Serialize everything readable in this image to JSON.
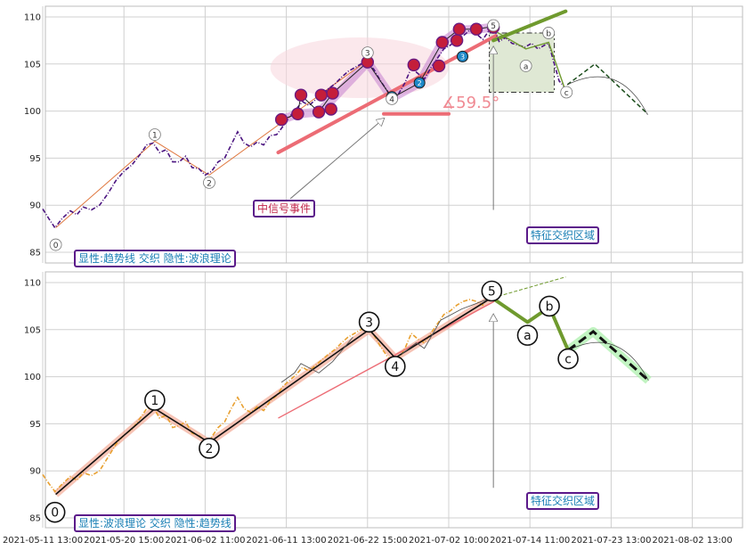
{
  "chart_data": {
    "type": "line",
    "x_ticks": [
      "2021-05-11 13:00",
      "2021-05-20 15:00",
      "2021-06-02 11:00",
      "2021-06-11 13:00",
      "2021-06-22 15:00",
      "2021-07-02 10:00",
      "2021-07-14 11:00",
      "2021-07-23 13:00",
      "2021-08-02 13:00"
    ],
    "y_ticks": [
      85,
      90,
      95,
      100,
      105,
      110
    ],
    "ylim": [
      84,
      111
    ],
    "panels": [
      {
        "id": "top",
        "label": "显性:趋势线 交织 隐性:波浪理论",
        "annotation_event": "中信号事件",
        "annotation_region": "特征交织区域",
        "angle_label": "∡59.5°",
        "wave_points": [
          {
            "label": "0",
            "x": 1.6,
            "y": 85.8
          },
          {
            "label": "1",
            "x": 13.8,
            "y": 97.5
          },
          {
            "label": "2",
            "x": 20.5,
            "y": 92.4
          },
          {
            "label": "3",
            "x": 40.0,
            "y": 106.2
          },
          {
            "label": "4",
            "x": 43.0,
            "y": 101.3
          },
          {
            "label": "5",
            "x": 55.5,
            "y": 109.1
          },
          {
            "label": "a",
            "x": 59.5,
            "y": 104.8
          },
          {
            "label": "b",
            "x": 62.3,
            "y": 108.3
          },
          {
            "label": "c",
            "x": 64.5,
            "y": 102.0
          }
        ],
        "small_marks": [
          {
            "label": "1",
            "x": 43.0,
            "y": 101.5
          },
          {
            "label": "2",
            "x": 46.4,
            "y": 103.0
          },
          {
            "label": "3",
            "x": 51.7,
            "y": 105.8
          }
        ],
        "event_marks": [
          {
            "x": 29.4,
            "y": 99.1
          },
          {
            "x": 31.4,
            "y": 99.7
          },
          {
            "x": 31.8,
            "y": 101.7
          },
          {
            "x": 34.0,
            "y": 99.9
          },
          {
            "x": 34.3,
            "y": 101.7
          },
          {
            "x": 35.5,
            "y": 100.2
          },
          {
            "x": 35.7,
            "y": 101.9
          },
          {
            "x": 40.0,
            "y": 105.2
          },
          {
            "x": 45.7,
            "y": 104.9
          },
          {
            "x": 48.8,
            "y": 104.8
          },
          {
            "x": 49.2,
            "y": 107.3
          },
          {
            "x": 51.0,
            "y": 107.5
          },
          {
            "x": 51.3,
            "y": 108.7
          },
          {
            "x": 53.4,
            "y": 108.7
          },
          {
            "x": 55.5,
            "y": 108.9
          }
        ],
        "price": [
          [
            0.0,
            89.6
          ],
          [
            0.8,
            88.5
          ],
          [
            1.5,
            87.6
          ],
          [
            2.4,
            88.6
          ],
          [
            3.4,
            89.4
          ],
          [
            4.2,
            89.0
          ],
          [
            5.0,
            89.8
          ],
          [
            6.0,
            89.5
          ],
          [
            7.0,
            90.0
          ],
          [
            8.0,
            91.2
          ],
          [
            9.0,
            92.6
          ],
          [
            10.0,
            93.6
          ],
          [
            11.0,
            94.3
          ],
          [
            12.0,
            95.4
          ],
          [
            12.8,
            96.4
          ],
          [
            13.6,
            96.6
          ],
          [
            14.4,
            95.6
          ],
          [
            15.2,
            95.9
          ],
          [
            16.0,
            94.6
          ],
          [
            16.8,
            94.6
          ],
          [
            17.6,
            95.2
          ],
          [
            18.4,
            94.0
          ],
          [
            19.2,
            93.9
          ],
          [
            20.0,
            93.2
          ],
          [
            20.8,
            93.6
          ],
          [
            21.6,
            94.6
          ],
          [
            22.4,
            95.0
          ],
          [
            23.2,
            96.4
          ],
          [
            24.0,
            97.8
          ],
          [
            24.8,
            96.6
          ],
          [
            25.6,
            96.2
          ],
          [
            26.4,
            96.7
          ],
          [
            27.2,
            96.4
          ],
          [
            28.0,
            97.4
          ],
          [
            28.8,
            97.5
          ],
          [
            29.6,
            98.4
          ],
          [
            30.4,
            99.4
          ],
          [
            31.2,
            100.2
          ],
          [
            32.0,
            101.0
          ],
          [
            32.8,
            100.6
          ],
          [
            33.6,
            101.2
          ],
          [
            34.4,
            101.8
          ],
          [
            35.2,
            102.4
          ],
          [
            36.0,
            102.9
          ],
          [
            36.8,
            103.6
          ],
          [
            37.6,
            104.2
          ],
          [
            38.4,
            104.6
          ],
          [
            39.2,
            105.0
          ],
          [
            40.0,
            105.2
          ],
          [
            40.8,
            104.4
          ],
          [
            41.6,
            103.2
          ],
          [
            42.4,
            102.2
          ],
          [
            43.0,
            101.3
          ],
          [
            43.8,
            101.8
          ],
          [
            44.6,
            103.0
          ],
          [
            45.4,
            104.6
          ],
          [
            46.2,
            104.0
          ],
          [
            47.0,
            103.4
          ],
          [
            47.8,
            104.6
          ],
          [
            48.6,
            105.6
          ],
          [
            49.4,
            106.6
          ],
          [
            50.2,
            107.0
          ],
          [
            51.0,
            107.6
          ],
          [
            51.8,
            108.0
          ],
          [
            52.6,
            108.6
          ],
          [
            53.4,
            108.2
          ],
          [
            54.2,
            107.6
          ],
          [
            55.0,
            108.6
          ],
          [
            55.5,
            109.0
          ],
          [
            56.2,
            107.4
          ],
          [
            57.0,
            107.8
          ],
          [
            57.8,
            107.2
          ],
          [
            58.6,
            107.0
          ],
          [
            59.4,
            106.8
          ],
          [
            60.2,
            107.2
          ],
          [
            61.0,
            106.6
          ],
          [
            61.8,
            107.0
          ],
          [
            62.3,
            107.2
          ],
          [
            63.0,
            105.0
          ],
          [
            63.6,
            103.2
          ],
          [
            64.2,
            102.6
          ]
        ]
      },
      {
        "id": "bottom",
        "label": "显性:波浪理论 交织 隐性:趋势线",
        "annotation_region": "特征交织区域",
        "wave_points": [
          {
            "label": "0",
            "x": 1.5,
            "y": 85.6
          },
          {
            "label": "1",
            "x": 13.8,
            "y": 97.5
          },
          {
            "label": "2",
            "x": 20.5,
            "y": 92.4
          },
          {
            "label": "3",
            "x": 40.2,
            "y": 105.8
          },
          {
            "label": "4",
            "x": 43.4,
            "y": 101.1
          },
          {
            "label": "5",
            "x": 55.3,
            "y": 109.1
          },
          {
            "label": "a",
            "x": 59.7,
            "y": 104.4
          },
          {
            "label": "b",
            "x": 62.4,
            "y": 107.5
          },
          {
            "label": "c",
            "x": 64.7,
            "y": 101.9
          }
        ],
        "price": [
          [
            0.0,
            89.6
          ],
          [
            0.8,
            88.6
          ],
          [
            1.5,
            87.8
          ],
          [
            2.4,
            88.6
          ],
          [
            3.4,
            89.4
          ],
          [
            4.2,
            89.0
          ],
          [
            5.0,
            89.8
          ],
          [
            6.0,
            89.5
          ],
          [
            7.0,
            90.0
          ],
          [
            8.0,
            91.4
          ],
          [
            9.0,
            92.8
          ],
          [
            10.0,
            93.8
          ],
          [
            11.0,
            94.4
          ],
          [
            12.0,
            95.6
          ],
          [
            12.8,
            96.6
          ],
          [
            13.6,
            96.8
          ],
          [
            14.4,
            95.6
          ],
          [
            15.2,
            95.9
          ],
          [
            16.0,
            94.6
          ],
          [
            16.8,
            94.8
          ],
          [
            17.6,
            95.2
          ],
          [
            18.4,
            94.0
          ],
          [
            19.2,
            93.8
          ],
          [
            20.0,
            93.2
          ],
          [
            20.8,
            93.6
          ],
          [
            21.6,
            94.6
          ],
          [
            22.4,
            95.2
          ],
          [
            23.2,
            96.6
          ],
          [
            24.0,
            97.8
          ],
          [
            24.8,
            96.6
          ],
          [
            25.6,
            96.2
          ],
          [
            26.4,
            96.8
          ],
          [
            27.2,
            96.4
          ],
          [
            28.0,
            97.4
          ],
          [
            28.8,
            98.0
          ],
          [
            29.6,
            99.0
          ],
          [
            30.4,
            99.6
          ],
          [
            31.2,
            100.2
          ],
          [
            32.0,
            101.0
          ],
          [
            32.8,
            100.6
          ],
          [
            33.6,
            101.2
          ],
          [
            34.4,
            101.8
          ],
          [
            35.2,
            102.4
          ],
          [
            36.0,
            102.9
          ],
          [
            36.8,
            103.6
          ],
          [
            37.6,
            104.2
          ],
          [
            38.4,
            104.6
          ],
          [
            39.2,
            105.0
          ],
          [
            40.0,
            105.2
          ],
          [
            40.8,
            104.4
          ],
          [
            41.6,
            103.2
          ],
          [
            42.4,
            102.2
          ],
          [
            43.0,
            101.6
          ],
          [
            43.8,
            101.8
          ],
          [
            44.6,
            103.0
          ],
          [
            45.4,
            104.6
          ],
          [
            46.2,
            104.0
          ],
          [
            47.0,
            103.6
          ],
          [
            47.8,
            104.6
          ],
          [
            48.6,
            105.6
          ],
          [
            49.4,
            106.6
          ],
          [
            50.2,
            107.0
          ],
          [
            51.0,
            107.6
          ],
          [
            51.8,
            108.0
          ],
          [
            52.6,
            108.2
          ],
          [
            53.4,
            108.0
          ],
          [
            54.2,
            107.6
          ],
          [
            55.0,
            108.6
          ]
        ]
      }
    ]
  }
}
